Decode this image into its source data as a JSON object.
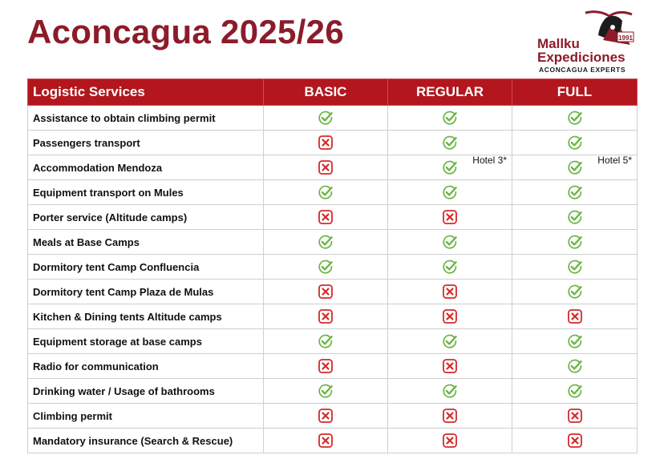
{
  "title": "Aconcagua 2025/26",
  "logo": {
    "name_line1": "Mallku",
    "name_line2": "Expediciones",
    "tagline": "ACONCAGUA EXPERTS",
    "badge_year": "1991"
  },
  "colors": {
    "brand": "#8c1c2a",
    "header_bg": "#b3161d",
    "yes": "#6ab443",
    "no": "#d42a2a"
  },
  "table": {
    "columns": [
      "Logistic Services",
      "BASIC",
      "REGULAR",
      "FULL"
    ],
    "rows": [
      {
        "service": "Assistance to obtain climbing permit",
        "basic": "yes",
        "regular": "yes",
        "full": "yes"
      },
      {
        "service": "Passengers transport",
        "basic": "no",
        "regular": "yes",
        "full": "yes"
      },
      {
        "service": "Accommodation Mendoza",
        "basic": "no",
        "regular": "yes",
        "regular_note": "Hotel 3*",
        "full": "yes",
        "full_note": "Hotel 5*"
      },
      {
        "service": "Equipment transport on Mules",
        "basic": "yes",
        "regular": "yes",
        "full": "yes"
      },
      {
        "service": "Porter service (Altitude camps)",
        "basic": "no",
        "regular": "no",
        "full": "yes"
      },
      {
        "service": "Meals at Base Camps",
        "basic": "yes",
        "regular": "yes",
        "full": "yes"
      },
      {
        "service": "Dormitory tent Camp Confluencia",
        "basic": "yes",
        "regular": "yes",
        "full": "yes"
      },
      {
        "service": "Dormitory tent Camp Plaza de Mulas",
        "basic": "no",
        "regular": "no",
        "full": "yes"
      },
      {
        "service": "Kitchen & Dining tents Altitude camps",
        "basic": "no",
        "regular": "no",
        "full": "no"
      },
      {
        "service": "Equipment storage at base camps",
        "basic": "yes",
        "regular": "yes",
        "full": "yes"
      },
      {
        "service": "Radio for communication",
        "basic": "no",
        "regular": "no",
        "full": "yes"
      },
      {
        "service": "Drinking water / Usage of bathrooms",
        "basic": "yes",
        "regular": "yes",
        "full": "yes"
      },
      {
        "service": "Climbing permit",
        "basic": "no",
        "regular": "no",
        "full": "no"
      },
      {
        "service": "Mandatory insurance (Search & Rescue)",
        "basic": "no",
        "regular": "no",
        "full": "no"
      }
    ]
  }
}
